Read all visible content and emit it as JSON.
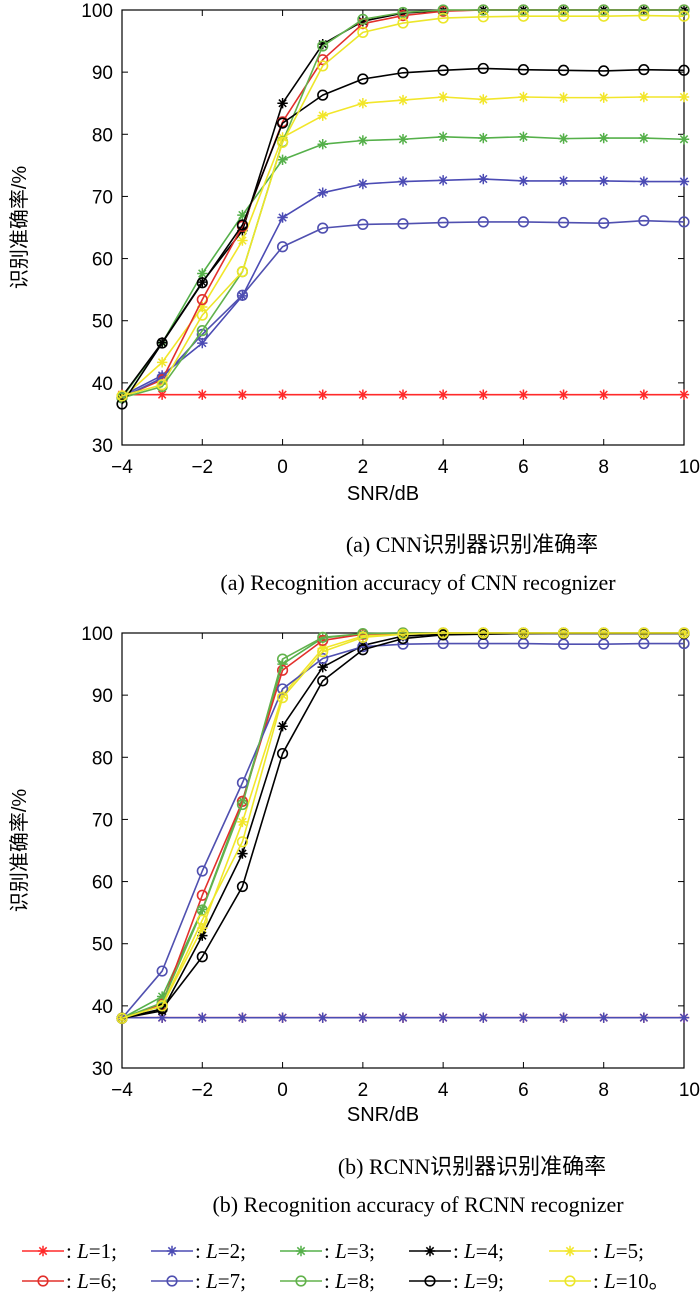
{
  "colors": {
    "L1": "#ff2a2a",
    "L2": "#4b4bb4",
    "L3": "#55b04a",
    "L4": "#000000",
    "L5": "#f2e62a",
    "L6": "#e2302c",
    "L7": "#5050b0",
    "L8": "#62b24c",
    "L9": "#000000",
    "L10": "#ece62a"
  },
  "legend": {
    "items": [
      {
        "series": "L=1",
        "marker": "star",
        "color_key": "L1",
        "prefix": ": ",
        "var": "L",
        "eq": "=1",
        "sep": ";"
      },
      {
        "series": "L=2",
        "marker": "star",
        "color_key": "L2",
        "prefix": ": ",
        "var": "L",
        "eq": "=2",
        "sep": ";"
      },
      {
        "series": "L=3",
        "marker": "star",
        "color_key": "L3",
        "prefix": ": ",
        "var": "L",
        "eq": "=3",
        "sep": ";"
      },
      {
        "series": "L=4",
        "marker": "star",
        "color_key": "L4",
        "prefix": ": ",
        "var": "L",
        "eq": "=4",
        "sep": ";"
      },
      {
        "series": "L=5",
        "marker": "star",
        "color_key": "L5",
        "prefix": ": ",
        "var": "L",
        "eq": "=5",
        "sep": ";"
      },
      {
        "series": "L=6",
        "marker": "circle",
        "color_key": "L6",
        "prefix": ": ",
        "var": "L",
        "eq": "=6",
        "sep": ";"
      },
      {
        "series": "L=7",
        "marker": "circle",
        "color_key": "L7",
        "prefix": ": ",
        "var": "L",
        "eq": "=7",
        "sep": ";"
      },
      {
        "series": "L=8",
        "marker": "circle",
        "color_key": "L8",
        "prefix": ": ",
        "var": "L",
        "eq": "=8",
        "sep": ";"
      },
      {
        "series": "L=9",
        "marker": "circle",
        "color_key": "L9",
        "prefix": ": ",
        "var": "L",
        "eq": "=9",
        "sep": ";"
      },
      {
        "series": "L=10",
        "marker": "circle",
        "color_key": "L10",
        "prefix": ": ",
        "var": "L",
        "eq": "=10",
        "sep": "。"
      }
    ]
  },
  "chart_data": [
    {
      "type": "line",
      "title": "",
      "caption_cn": "(a) CNN识别器识别准确率",
      "caption_en": "(a) Recognition accuracy of CNN recognizer",
      "xlabel": "SNR/dB",
      "ylabel": "识别准确率/%",
      "xlim": [
        -4,
        10
      ],
      "ylim": [
        30,
        100
      ],
      "xticks": [
        -4,
        -2,
        0,
        2,
        4,
        6,
        8,
        10
      ],
      "yticks": [
        30,
        40,
        50,
        60,
        70,
        80,
        90,
        100
      ],
      "grid": false,
      "x": [
        -4,
        -3,
        -2,
        -1,
        0,
        1,
        2,
        3,
        4,
        5,
        6,
        7,
        8,
        9,
        10
      ],
      "series": [
        {
          "name": "L=1",
          "marker": "star",
          "color_key": "L1",
          "values": [
            38.1,
            38.1,
            38.1,
            38.1,
            38.1,
            38.1,
            38.1,
            38.1,
            38.1,
            38.1,
            38.1,
            38.1,
            38.1,
            38.1,
            38.1
          ]
        },
        {
          "name": "L=2",
          "marker": "star",
          "color_key": "L2",
          "values": [
            37.9,
            41.2,
            46.4,
            54.0,
            66.6,
            70.6,
            72.0,
            72.4,
            72.6,
            72.8,
            72.5,
            72.5,
            72.5,
            72.4,
            72.4
          ]
        },
        {
          "name": "L=3",
          "marker": "star",
          "color_key": "L3",
          "values": [
            37.6,
            46.4,
            57.6,
            67.0,
            75.9,
            78.4,
            79.0,
            79.2,
            79.6,
            79.4,
            79.6,
            79.3,
            79.4,
            79.4,
            79.2
          ]
        },
        {
          "name": "L=4",
          "marker": "star",
          "color_key": "L4",
          "values": [
            37.8,
            46.5,
            56.2,
            64.5,
            85.0,
            94.5,
            98.2,
            99.5,
            99.9,
            100.0,
            100.0,
            100.0,
            100.0,
            100.0,
            100.0
          ]
        },
        {
          "name": "L=5",
          "marker": "star",
          "color_key": "L5",
          "values": [
            37.5,
            43.3,
            52.2,
            62.9,
            79.5,
            83.0,
            85.0,
            85.5,
            86.0,
            85.6,
            86.0,
            85.9,
            85.9,
            86.0,
            86.0
          ]
        },
        {
          "name": "L=6",
          "marker": "circle",
          "color_key": "L6",
          "values": [
            37.7,
            40.5,
            53.4,
            65.2,
            82.0,
            92.0,
            97.8,
            99.1,
            99.8,
            100.0,
            100.0,
            100.0,
            100.0,
            100.0,
            100.0
          ]
        },
        {
          "name": "L=7",
          "marker": "circle",
          "color_key": "L7",
          "values": [
            37.6,
            40.8,
            47.8,
            54.1,
            61.9,
            64.9,
            65.5,
            65.6,
            65.8,
            65.9,
            65.9,
            65.8,
            65.7,
            66.1,
            65.9
          ]
        },
        {
          "name": "L=8",
          "marker": "circle",
          "color_key": "L8",
          "values": [
            37.6,
            39.4,
            48.4,
            57.9,
            78.8,
            94.2,
            98.5,
            99.6,
            100.0,
            100.0,
            100.0,
            100.0,
            100.0,
            100.0,
            100.0
          ]
        },
        {
          "name": "L=9",
          "marker": "circle",
          "color_key": "L9",
          "values": [
            36.6,
            46.4,
            56.1,
            65.4,
            81.8,
            86.3,
            88.9,
            89.9,
            90.3,
            90.6,
            90.4,
            90.3,
            90.2,
            90.4,
            90.3
          ]
        },
        {
          "name": "L=10",
          "marker": "circle",
          "color_key": "L10",
          "values": [
            37.9,
            39.7,
            50.9,
            57.9,
            78.7,
            91.0,
            96.4,
            97.9,
            98.7,
            98.9,
            99.0,
            99.0,
            99.0,
            99.1,
            99.0
          ]
        }
      ]
    },
    {
      "type": "line",
      "title": "",
      "caption_cn": "(b) RCNN识别器识别准确率",
      "caption_en": "(b) Recognition accuracy of RCNN recognizer",
      "xlabel": "SNR/dB",
      "ylabel": "识别准确率/%",
      "xlim": [
        -4,
        10
      ],
      "ylim": [
        30,
        100
      ],
      "xticks": [
        -4,
        -2,
        0,
        2,
        4,
        6,
        8,
        10
      ],
      "yticks": [
        30,
        40,
        50,
        60,
        70,
        80,
        90,
        100
      ],
      "grid": false,
      "x": [
        -4,
        -3,
        -2,
        -1,
        0,
        1,
        2,
        3,
        4,
        5,
        6,
        7,
        8,
        9,
        10
      ],
      "series": [
        {
          "name": "L=1",
          "marker": "star",
          "color_key": "L1",
          "values": [
            38.1,
            38.1,
            38.1,
            38.1,
            38.1,
            38.1,
            38.1,
            38.1,
            38.1,
            38.1,
            38.1,
            38.1,
            38.1,
            38.1,
            38.1
          ]
        },
        {
          "name": "L=2",
          "marker": "star",
          "color_key": "L2",
          "values": [
            38.1,
            38.1,
            38.1,
            38.1,
            38.1,
            38.1,
            38.1,
            38.1,
            38.1,
            38.1,
            38.1,
            38.1,
            38.1,
            38.1,
            38.1
          ]
        },
        {
          "name": "L=3",
          "marker": "star",
          "color_key": "L3",
          "values": [
            38.0,
            41.5,
            55.5,
            73.0,
            95.0,
            99.2,
            99.9,
            100.0,
            100.0,
            100.0,
            100.0,
            100.0,
            100.0,
            100.0,
            100.0
          ]
        },
        {
          "name": "L=4",
          "marker": "star",
          "color_key": "L4",
          "values": [
            38.0,
            39.2,
            51.3,
            64.5,
            85.0,
            94.5,
            98.0,
            99.5,
            99.8,
            99.9,
            99.9,
            100.0,
            100.0,
            100.0,
            100.0
          ]
        },
        {
          "name": "L=5",
          "marker": "star",
          "color_key": "L5",
          "values": [
            38.0,
            40.0,
            52.5,
            69.6,
            90.0,
            97.5,
            99.5,
            99.9,
            100.0,
            100.0,
            100.0,
            100.0,
            100.0,
            100.0,
            100.0
          ]
        },
        {
          "name": "L=6",
          "marker": "circle",
          "color_key": "L6",
          "values": [
            38.0,
            40.3,
            57.8,
            72.9,
            94.0,
            98.8,
            99.8,
            100.0,
            100.0,
            100.0,
            100.0,
            100.0,
            100.0,
            100.0,
            100.0
          ]
        },
        {
          "name": "L=7",
          "marker": "circle",
          "color_key": "L7",
          "values": [
            38.0,
            45.6,
            61.7,
            75.9,
            91.0,
            95.9,
            97.8,
            98.2,
            98.3,
            98.3,
            98.3,
            98.2,
            98.2,
            98.3,
            98.3
          ]
        },
        {
          "name": "L=8",
          "marker": "circle",
          "color_key": "L8",
          "values": [
            38.0,
            40.5,
            55.4,
            72.4,
            95.8,
            99.3,
            99.9,
            100.0,
            100.0,
            100.0,
            100.0,
            100.0,
            100.0,
            100.0,
            100.0
          ]
        },
        {
          "name": "L=9",
          "marker": "circle",
          "color_key": "L9",
          "values": [
            38.0,
            39.5,
            47.9,
            59.2,
            80.6,
            92.3,
            97.3,
            99.1,
            99.7,
            99.8,
            99.9,
            99.9,
            99.9,
            99.9,
            99.9
          ]
        },
        {
          "name": "L=10",
          "marker": "circle",
          "color_key": "L10",
          "values": [
            38.0,
            40.0,
            53.8,
            66.4,
            89.6,
            97.0,
            99.3,
            99.8,
            100.0,
            100.0,
            100.0,
            100.0,
            100.0,
            100.0,
            100.0
          ]
        }
      ]
    }
  ]
}
